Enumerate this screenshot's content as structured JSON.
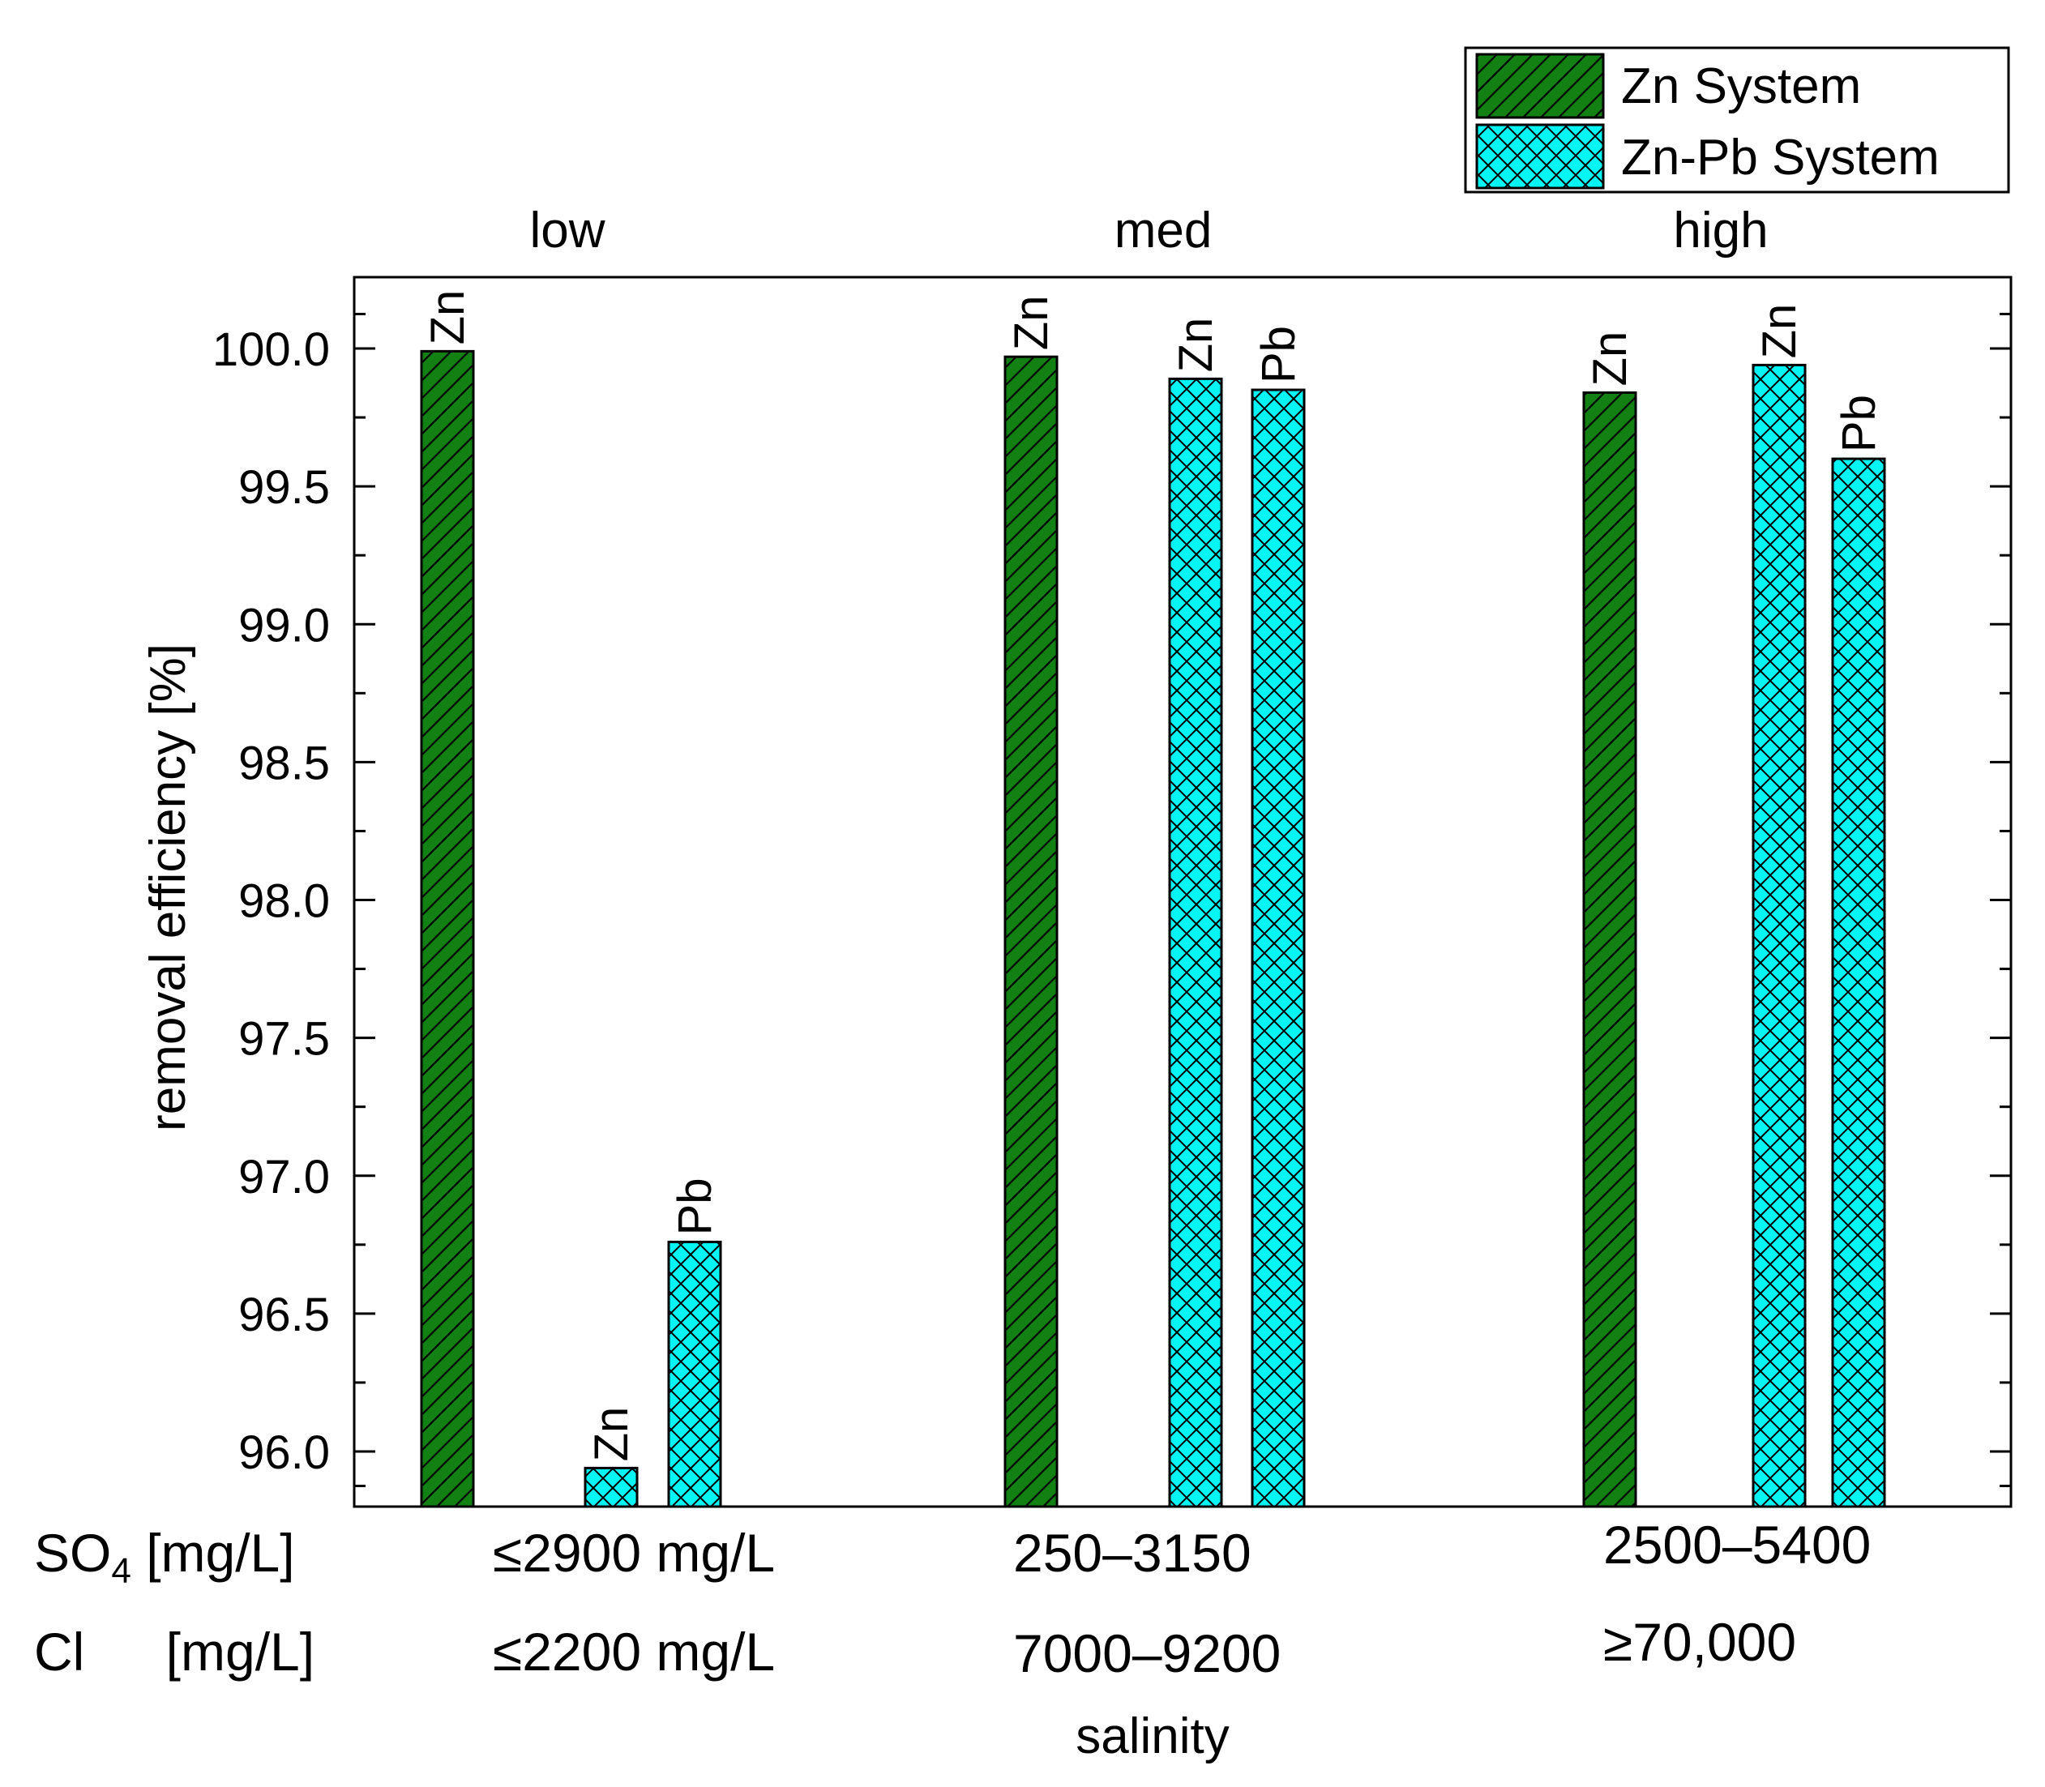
{
  "chart_data": {
    "type": "bar",
    "ylabel": "removal efficiency [%]",
    "xlabel": "salinity",
    "ylim": [
      95.8,
      100.25
    ],
    "yticks": [
      96.0,
      96.5,
      97.0,
      97.5,
      98.0,
      98.5,
      99.0,
      99.5,
      100.0
    ],
    "ytick_labels": [
      "96.0",
      "96.5",
      "97.0",
      "97.5",
      "98.0",
      "98.5",
      "99.0",
      "99.5",
      "100.0"
    ],
    "categories": [
      "low",
      "med",
      "high"
    ],
    "legend": {
      "position": "top-right",
      "entries": [
        {
          "series": "zn",
          "label": "Zn System",
          "color": "#138013",
          "hatch": "diagonal"
        },
        {
          "series": "znpb",
          "label": "Zn-Pb System",
          "color": "#00f5f5",
          "hatch": "crosshatch"
        }
      ]
    },
    "bars": [
      {
        "category": "low",
        "series": "zn",
        "metal": "Zn",
        "value": 99.99
      },
      {
        "category": "low",
        "series": "znpb",
        "metal": "Zn",
        "value": 95.94
      },
      {
        "category": "low",
        "series": "znpb",
        "metal": "Pb",
        "value": 96.76
      },
      {
        "category": "med",
        "series": "zn",
        "metal": "Zn",
        "value": 99.97
      },
      {
        "category": "med",
        "series": "znpb",
        "metal": "Zn",
        "value": 99.89
      },
      {
        "category": "med",
        "series": "znpb",
        "metal": "Pb",
        "value": 99.85
      },
      {
        "category": "high",
        "series": "zn",
        "metal": "Zn",
        "value": 99.84
      },
      {
        "category": "high",
        "series": "znpb",
        "metal": "Zn",
        "value": 99.94
      },
      {
        "category": "high",
        "series": "znpb",
        "metal": "Pb",
        "value": 99.6
      }
    ],
    "conditions": {
      "so4_label": "SO",
      "so4_subscript": "4",
      "so4_unit": "[mg/L]",
      "cl_label": "Cl",
      "cl_unit": "[mg/L]",
      "so4_values": [
        "≤2900 mg/L",
        "250–3150",
        "2500–5400"
      ],
      "cl_values": [
        "≤2200 mg/L",
        "7000–9200",
        "≥70,000"
      ]
    }
  }
}
